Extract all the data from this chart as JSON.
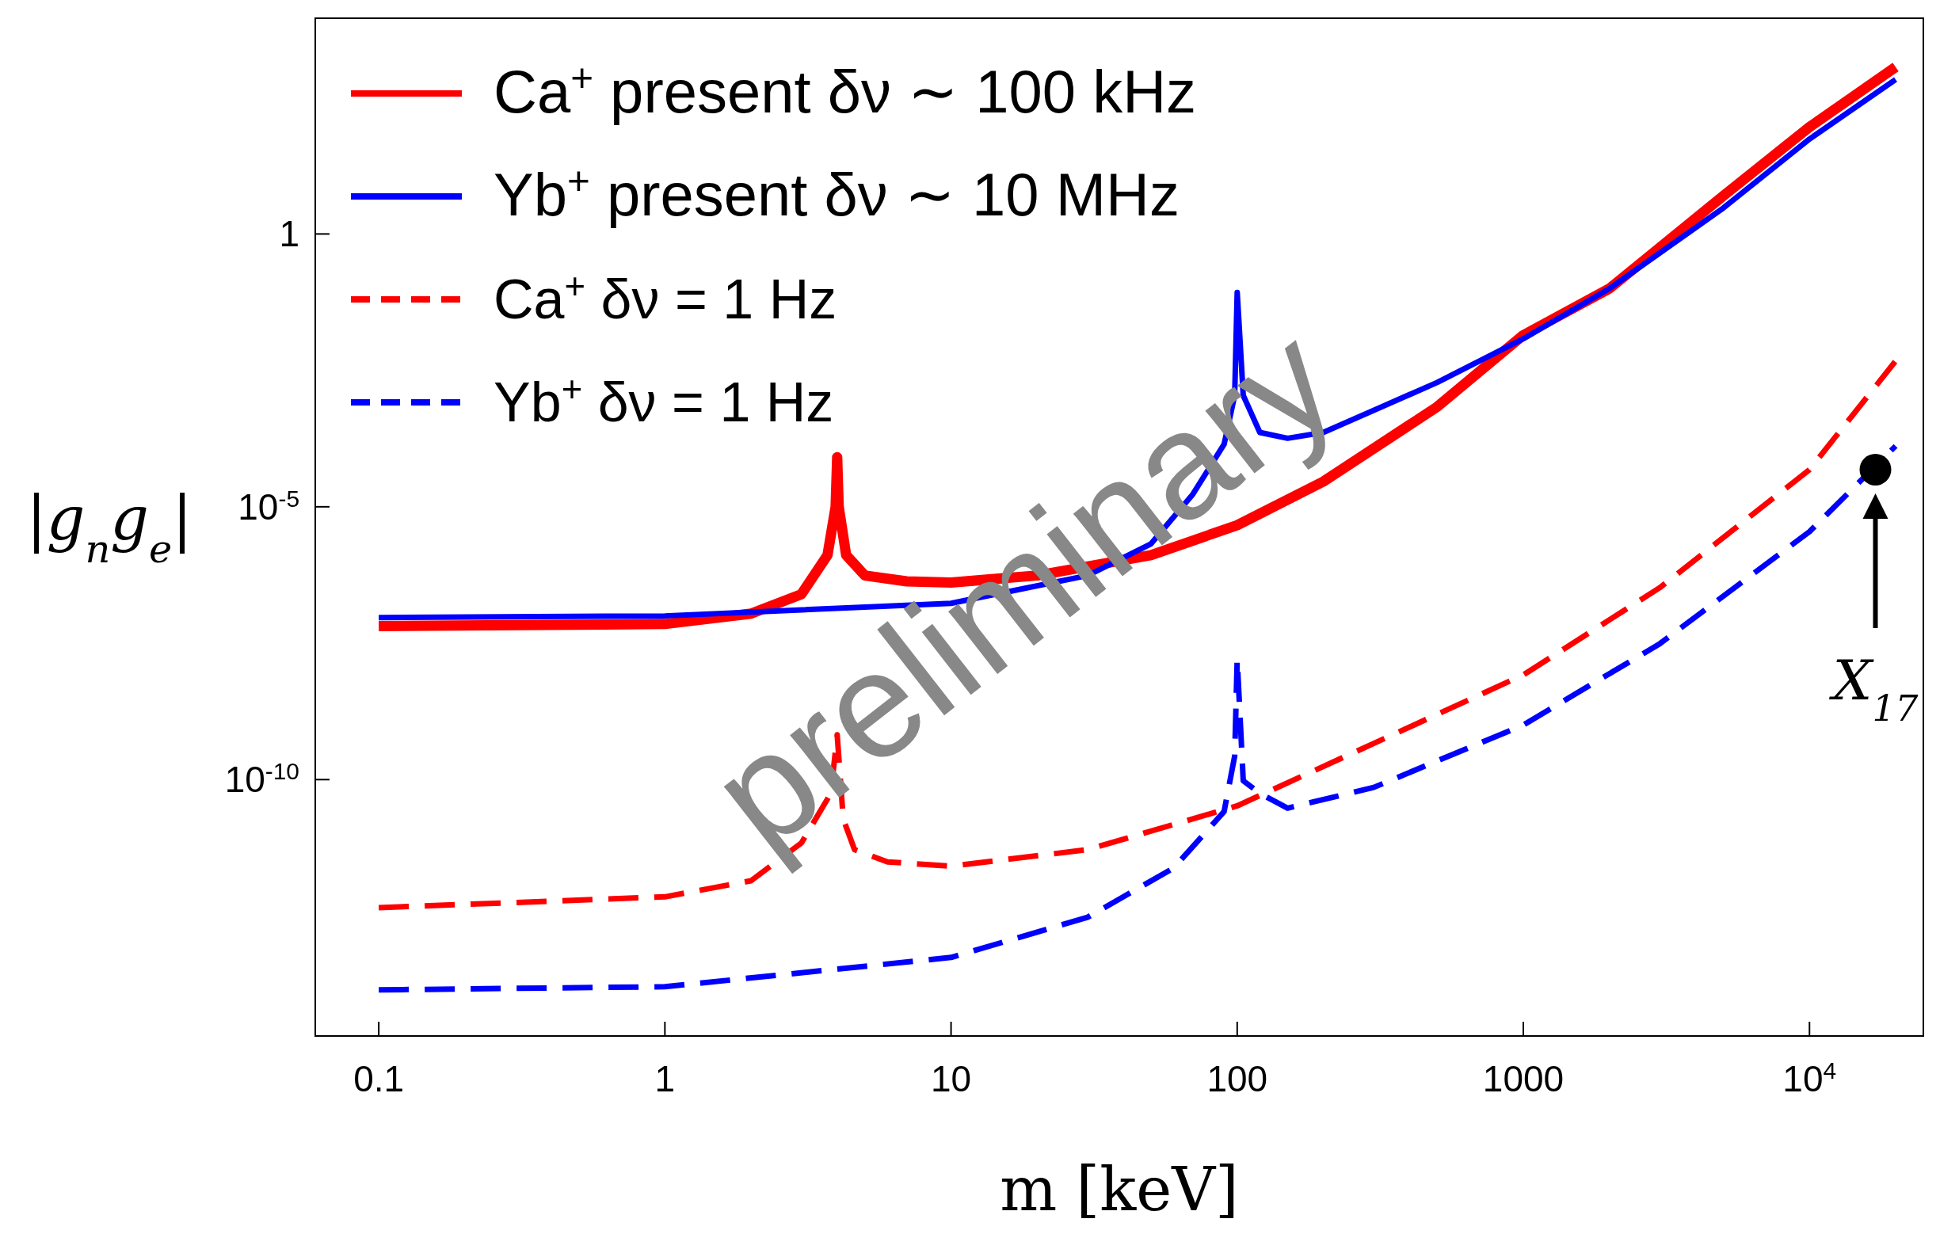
{
  "chart_data": {
    "type": "line",
    "xlabel": "m [keV]",
    "ylabel": "|g$_{n}$g$_{e}$|",
    "log": "xy",
    "legend": "top left",
    "xlim": [
      0.06,
      25000
    ],
    "ylim": [
      2e-15,
      9000
    ],
    "xticks": [
      0.1,
      1,
      10,
      100,
      1000,
      {
        "value": 10000,
        "label": "10$^{4}$"
      }
    ],
    "yticks": [
      1,
      {
        "value": 1e-05,
        "label": "10$^{-5}$"
      },
      {
        "value": 1e-10,
        "label": "10$^{-10}$"
      }
    ],
    "series": [
      {
        "name": "Ca$^{+}$ present  δν ∼ 100 kHz",
        "color": "#ff0000",
        "line_style": "solid",
        "x": [
          0.1,
          0.3,
          1,
          2,
          3,
          3.7,
          3.95,
          4,
          4.05,
          4.3,
          5,
          7,
          10,
          20,
          50,
          100,
          200,
          500,
          1000,
          2000,
          5000,
          10000,
          20000
        ],
        "values": [
          6.5e-08,
          6.8e-08,
          7.1e-08,
          1.1e-07,
          2.5e-07,
          1.3e-06,
          1e-05,
          8.1e-05,
          1e-05,
          1.3e-06,
          5.5e-07,
          4.3e-07,
          4.1e-07,
          5.5e-07,
          1.3e-06,
          4.6e-06,
          2.9e-05,
          0.00068,
          0.014,
          0.1,
          5,
          91,
          1150
        ]
      },
      {
        "name": "Yb$^{+}$ present  δν ∼ 10 MHz",
        "color": "#0000ff",
        "line_style": "solid",
        "x": [
          0.1,
          1,
          10,
          30,
          50,
          70,
          90,
          98,
          100,
          105,
          120,
          150,
          200,
          500,
          1000,
          2000,
          5000,
          10000,
          20000
        ],
        "values": [
          9.3e-08,
          1e-07,
          1.7e-07,
          5.5e-07,
          2.1e-06,
          1.7e-05,
          0.00014,
          0.0011,
          0.085,
          0.0011,
          0.00023,
          0.00018,
          0.00023,
          0.0019,
          0.012,
          0.1,
          3,
          55,
          680
        ]
      },
      {
        "name": "Ca$^{+}$ δν = 1 Hz",
        "color": "#ff0000",
        "line_style": "dashed",
        "x": [
          0.1,
          1,
          2,
          3,
          3.8,
          4,
          4.2,
          4.6,
          6,
          10,
          30,
          100,
          300,
          1000,
          3000,
          10000,
          20000
        ],
        "values": [
          4.5e-13,
          7.1e-13,
          1.4e-12,
          6.9e-12,
          5.6e-11,
          6.6e-10,
          1.9e-11,
          5.2e-12,
          3.1e-12,
          2.6e-12,
          5.2e-12,
          3.3e-11,
          4.6e-10,
          8.3e-09,
          3.3e-07,
          4.8e-05,
          0.0047
        ]
      },
      {
        "name": "Yb$^{+}$ δν = 1 Hz",
        "color": "#0000ff",
        "line_style": "dashed",
        "x": [
          0.1,
          1,
          10,
          30,
          60,
          90,
          98,
          100,
          105,
          120,
          150,
          300,
          1000,
          3000,
          10000,
          20000
        ],
        "values": [
          1.4e-14,
          1.6e-14,
          5.5e-14,
          3e-13,
          2.4e-12,
          2.6e-11,
          2.7e-10,
          1.6e-08,
          9.5e-11,
          5.6e-11,
          3e-11,
          7.2e-11,
          1e-09,
          3.1e-08,
          3.5e-06,
          0.00013
        ]
      },
      {
        "type": "scatter",
        "marker": "circle",
        "color": "#000000",
        "x": [
          17000
        ],
        "values": [
          4.8e-05
        ]
      }
    ],
    "annotations": [
      "X$_{17}$",
      "preliminary"
    ]
  }
}
